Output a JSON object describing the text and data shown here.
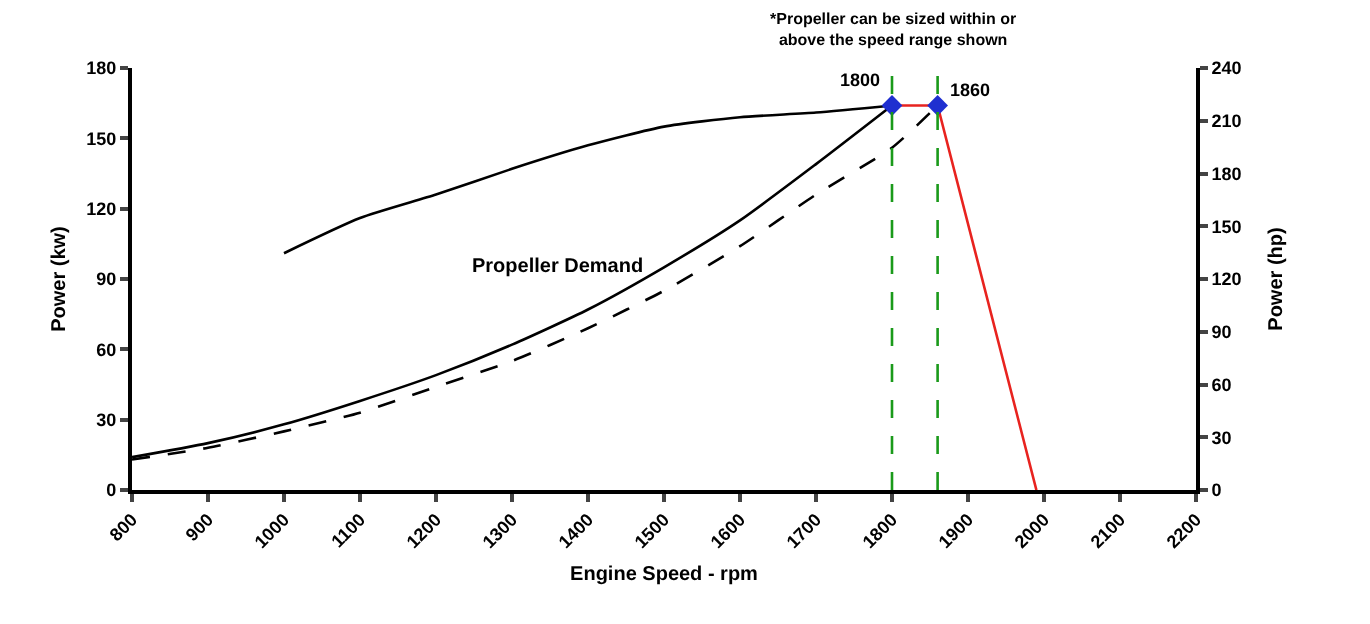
{
  "chart_data": {
    "type": "line",
    "xlabel": "Engine Speed - rpm",
    "ylabel": "Power (kw)",
    "y2label": "Power (hp)",
    "xlim": [
      800,
      2200
    ],
    "xticks": [
      800,
      900,
      1000,
      1100,
      1200,
      1300,
      1400,
      1500,
      1600,
      1700,
      1800,
      1900,
      2000,
      2100,
      2200
    ],
    "ylim": [
      0,
      180
    ],
    "yticks": [
      0,
      30,
      60,
      90,
      120,
      150,
      180
    ],
    "y2lim": [
      0,
      240
    ],
    "y2ticks": [
      0,
      30,
      60,
      90,
      120,
      150,
      180,
      210,
      240
    ],
    "marker": "none",
    "series": [
      {
        "color": "#000000",
        "line_style": "solid",
        "x": [
          1000,
          1100,
          1200,
          1300,
          1400,
          1500,
          1600,
          1700,
          1800
        ],
        "values": [
          101,
          116,
          126,
          137,
          147,
          155,
          159,
          161,
          164
        ]
      },
      {
        "color": "#000000",
        "line_style": "solid",
        "x": [
          800,
          900,
          1000,
          1100,
          1200,
          1300,
          1400,
          1500,
          1600,
          1700,
          1800
        ],
        "values": [
          14,
          20,
          28,
          38,
          49,
          62,
          77,
          95,
          115,
          139,
          164
        ]
      },
      {
        "color": "#000000",
        "line_style": "dashed",
        "x": [
          800,
          900,
          1000,
          1100,
          1200,
          1300,
          1400,
          1500,
          1600,
          1700,
          1800,
          1860
        ],
        "values": [
          13,
          18,
          25,
          33,
          44,
          55,
          69,
          85,
          104,
          126,
          146,
          164
        ]
      },
      {
        "color": "#e8231f",
        "line_style": "solid",
        "x": [
          1800,
          1860,
          1990
        ],
        "values": [
          164,
          164,
          0
        ]
      },
      {
        "type": "scatter",
        "color": "#1f2fd0",
        "marker": "diamond",
        "x": [
          1800,
          1860
        ],
        "values": [
          164,
          164
        ]
      }
    ],
    "ref_lines": [
      {
        "axis": "x",
        "value": 1800,
        "label": "1800",
        "color": "#1a9a1a",
        "line_style": "dashed"
      },
      {
        "axis": "x",
        "value": 1860,
        "label": "1860",
        "color": "#1a9a1a",
        "line_style": "dashed"
      }
    ],
    "annotations": [
      "Propeller Demand",
      "*Propeller can be sized within or above the speed range shown"
    ]
  }
}
